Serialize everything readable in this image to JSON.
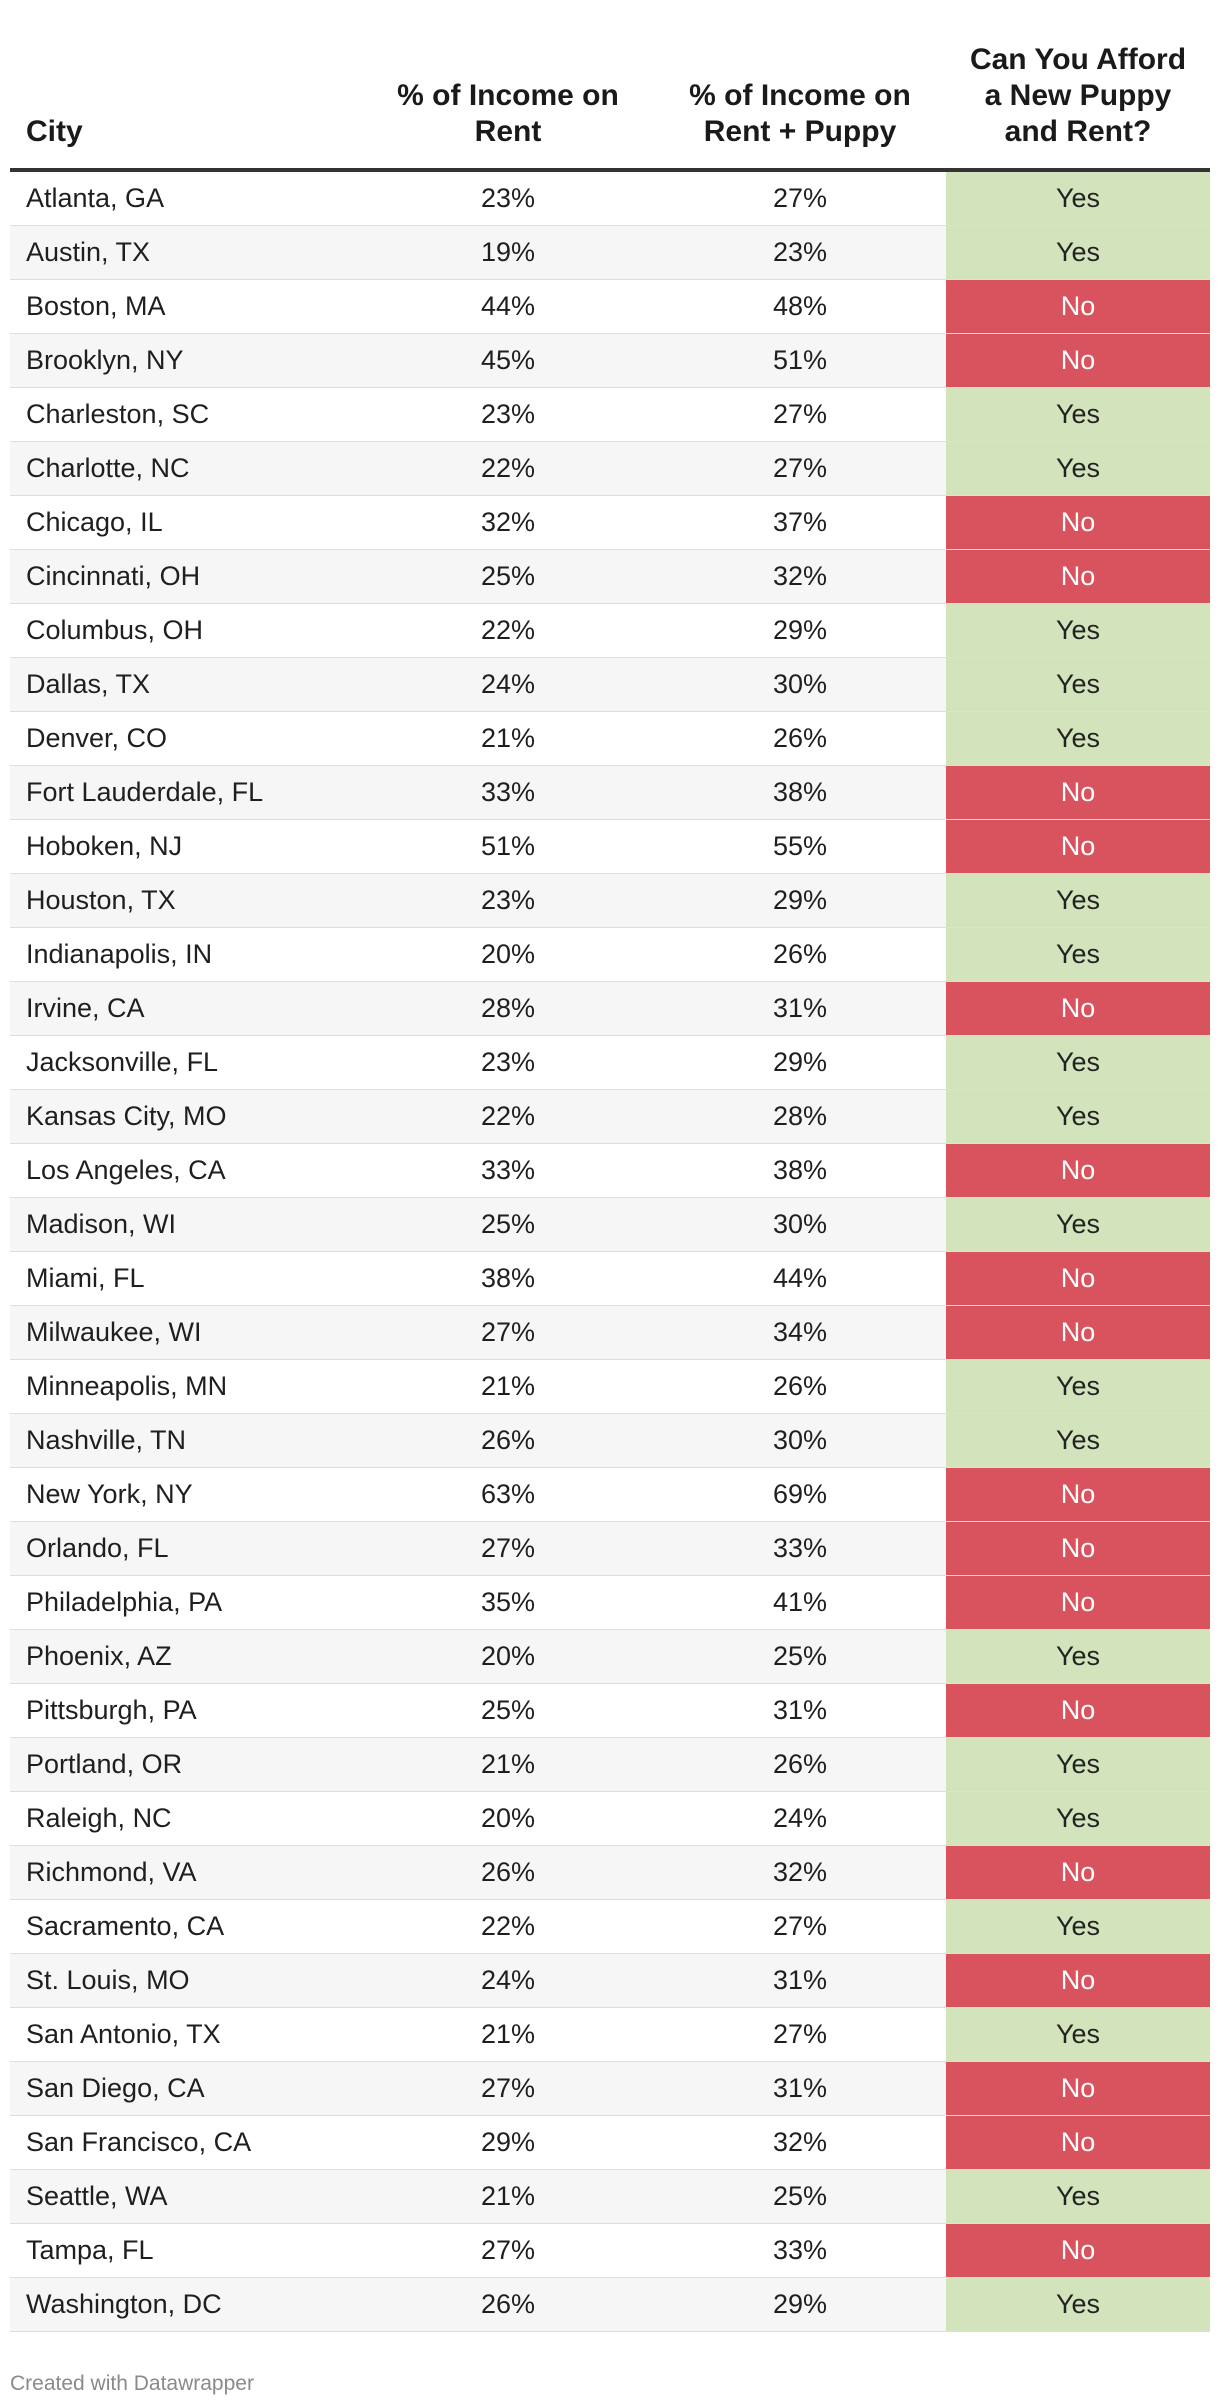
{
  "table": {
    "headers": {
      "city": "City",
      "rent": "% of Income on\nRent",
      "puppy": "% of Income on\nRent + Puppy",
      "afford": "Can You Afford\na New Puppy\nand Rent?"
    },
    "colors": {
      "yes": "#d3e3bb",
      "no": "#d9535f"
    },
    "rows": [
      {
        "city": "Atlanta, GA",
        "rent": "23%",
        "puppy": "27%",
        "afford": "Yes"
      },
      {
        "city": "Austin, TX",
        "rent": "19%",
        "puppy": "23%",
        "afford": "Yes"
      },
      {
        "city": "Boston, MA",
        "rent": "44%",
        "puppy": "48%",
        "afford": "No"
      },
      {
        "city": "Brooklyn, NY",
        "rent": "45%",
        "puppy": "51%",
        "afford": "No"
      },
      {
        "city": "Charleston, SC",
        "rent": "23%",
        "puppy": "27%",
        "afford": "Yes"
      },
      {
        "city": "Charlotte, NC",
        "rent": "22%",
        "puppy": "27%",
        "afford": "Yes"
      },
      {
        "city": "Chicago, IL",
        "rent": "32%",
        "puppy": "37%",
        "afford": "No"
      },
      {
        "city": "Cincinnati, OH",
        "rent": "25%",
        "puppy": "32%",
        "afford": "No"
      },
      {
        "city": "Columbus, OH",
        "rent": "22%",
        "puppy": "29%",
        "afford": "Yes"
      },
      {
        "city": "Dallas, TX",
        "rent": "24%",
        "puppy": "30%",
        "afford": "Yes"
      },
      {
        "city": "Denver, CO",
        "rent": "21%",
        "puppy": "26%",
        "afford": "Yes"
      },
      {
        "city": "Fort Lauderdale, FL",
        "rent": "33%",
        "puppy": "38%",
        "afford": "No"
      },
      {
        "city": "Hoboken, NJ",
        "rent": "51%",
        "puppy": "55%",
        "afford": "No"
      },
      {
        "city": "Houston, TX",
        "rent": "23%",
        "puppy": "29%",
        "afford": "Yes"
      },
      {
        "city": "Indianapolis, IN",
        "rent": "20%",
        "puppy": "26%",
        "afford": "Yes"
      },
      {
        "city": "Irvine, CA",
        "rent": "28%",
        "puppy": "31%",
        "afford": "No"
      },
      {
        "city": "Jacksonville, FL",
        "rent": "23%",
        "puppy": "29%",
        "afford": "Yes"
      },
      {
        "city": "Kansas City, MO",
        "rent": "22%",
        "puppy": "28%",
        "afford": "Yes"
      },
      {
        "city": "Los Angeles, CA",
        "rent": "33%",
        "puppy": "38%",
        "afford": "No"
      },
      {
        "city": "Madison, WI",
        "rent": "25%",
        "puppy": "30%",
        "afford": "Yes"
      },
      {
        "city": "Miami, FL",
        "rent": "38%",
        "puppy": "44%",
        "afford": "No"
      },
      {
        "city": "Milwaukee, WI",
        "rent": "27%",
        "puppy": "34%",
        "afford": "No"
      },
      {
        "city": "Minneapolis, MN",
        "rent": "21%",
        "puppy": "26%",
        "afford": "Yes"
      },
      {
        "city": "Nashville, TN",
        "rent": "26%",
        "puppy": "30%",
        "afford": "Yes"
      },
      {
        "city": "New York, NY",
        "rent": "63%",
        "puppy": "69%",
        "afford": "No"
      },
      {
        "city": "Orlando, FL",
        "rent": "27%",
        "puppy": "33%",
        "afford": "No"
      },
      {
        "city": "Philadelphia, PA",
        "rent": "35%",
        "puppy": "41%",
        "afford": "No"
      },
      {
        "city": "Phoenix, AZ",
        "rent": "20%",
        "puppy": "25%",
        "afford": "Yes"
      },
      {
        "city": "Pittsburgh, PA",
        "rent": "25%",
        "puppy": "31%",
        "afford": "No"
      },
      {
        "city": "Portland, OR",
        "rent": "21%",
        "puppy": "26%",
        "afford": "Yes"
      },
      {
        "city": "Raleigh, NC",
        "rent": "20%",
        "puppy": "24%",
        "afford": "Yes"
      },
      {
        "city": "Richmond, VA",
        "rent": "26%",
        "puppy": "32%",
        "afford": "No"
      },
      {
        "city": "Sacramento, CA",
        "rent": "22%",
        "puppy": "27%",
        "afford": "Yes"
      },
      {
        "city": "St. Louis, MO",
        "rent": "24%",
        "puppy": "31%",
        "afford": "No"
      },
      {
        "city": "San Antonio, TX",
        "rent": "21%",
        "puppy": "27%",
        "afford": "Yes"
      },
      {
        "city": "San Diego, CA",
        "rent": "27%",
        "puppy": "31%",
        "afford": "No"
      },
      {
        "city": "San Francisco, CA",
        "rent": "29%",
        "puppy": "32%",
        "afford": "No"
      },
      {
        "city": "Seattle, WA",
        "rent": "21%",
        "puppy": "25%",
        "afford": "Yes"
      },
      {
        "city": "Tampa, FL",
        "rent": "27%",
        "puppy": "33%",
        "afford": "No"
      },
      {
        "city": "Washington, DC",
        "rent": "26%",
        "puppy": "29%",
        "afford": "Yes"
      }
    ]
  },
  "footer": {
    "credit": "Created with Datawrapper"
  }
}
